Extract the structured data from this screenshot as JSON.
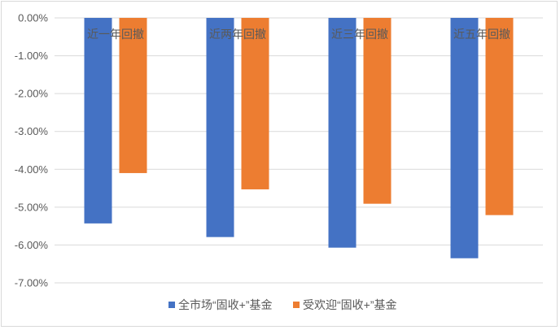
{
  "chart_data": {
    "type": "bar",
    "categories": [
      "近一年回撤",
      "近两年回撤",
      "近三年回撤",
      "近五年回撤"
    ],
    "series": [
      {
        "name": "全市场“固收+”基金",
        "values": [
          -5.43,
          -5.79,
          -6.07,
          -6.35
        ],
        "color": "#4472c4"
      },
      {
        "name": "受欢迎“固收+”基金",
        "values": [
          -4.1,
          -4.53,
          -4.91,
          -5.21
        ],
        "color": "#ed7d31"
      }
    ],
    "ylim": [
      -7.0,
      0.0
    ],
    "yticks": [
      "0.00%",
      "-1.00%",
      "-2.00%",
      "-3.00%",
      "-4.00%",
      "-5.00%",
      "-6.00%",
      "-7.00%"
    ],
    "ytick_values": [
      0,
      -1,
      -2,
      -3,
      -4,
      -5,
      -6,
      -7
    ],
    "grid": true,
    "legend_position": "bottom",
    "title": "",
    "xlabel": "",
    "ylabel": ""
  }
}
